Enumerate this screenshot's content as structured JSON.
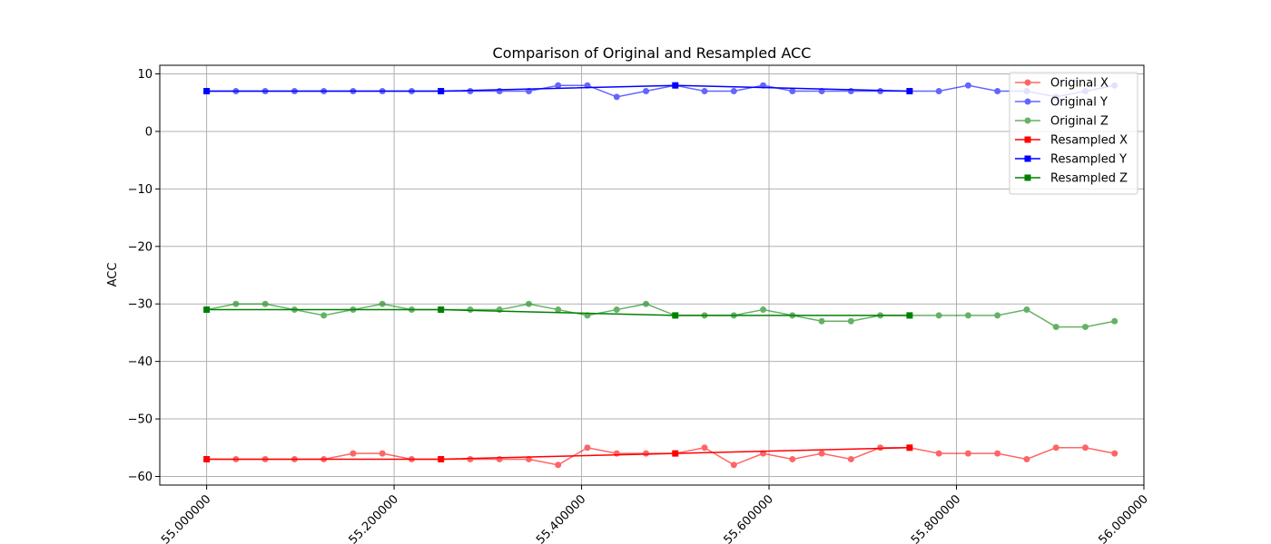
{
  "chart_data": {
    "type": "line",
    "title": "Comparison of Original and Resampled ACC",
    "xlabel": "",
    "ylabel": "ACC",
    "xlim": [
      54.95,
      56.0
    ],
    "ylim": [
      -61.5,
      11.5
    ],
    "grid": true,
    "legend_position": "top-right",
    "x_ticks": [
      55.0,
      55.2,
      55.4,
      55.6,
      55.8,
      56.0
    ],
    "x_tick_labels": [
      "55.000000",
      "55.200000",
      "55.400000",
      "55.600000",
      "55.800000",
      "56.000000"
    ],
    "y_ticks": [
      10,
      0,
      -10,
      -20,
      -30,
      -40,
      -50,
      -60
    ],
    "y_tick_labels": [
      "10",
      "0",
      "−10",
      "−20",
      "−30",
      "−40",
      "−50",
      "−60"
    ],
    "series": [
      {
        "name": "Original X",
        "color": "#ff0000",
        "opacity": 0.6,
        "marker": "circle",
        "x": [
          55.0,
          55.03125,
          55.0625,
          55.09375,
          55.125,
          55.15625,
          55.1875,
          55.21875,
          55.25,
          55.28125,
          55.3125,
          55.34375,
          55.375,
          55.40625,
          55.4375,
          55.46875,
          55.5,
          55.53125,
          55.5625,
          55.59375,
          55.625,
          55.65625,
          55.6875,
          55.71875,
          55.75,
          55.78125,
          55.8125,
          55.84375,
          55.875,
          55.90625,
          55.9375,
          55.96875
        ],
        "y": [
          -57,
          -57,
          -57,
          -57,
          -57,
          -56,
          -56,
          -57,
          -57,
          -57,
          -57,
          -57,
          -58,
          -55,
          -56,
          -56,
          -56,
          -55,
          -58,
          -56,
          -57,
          -56,
          -57,
          -55,
          -55,
          -56,
          -56,
          -56,
          -57,
          -55,
          -55,
          -56
        ]
      },
      {
        "name": "Original Y",
        "color": "#0000ff",
        "opacity": 0.6,
        "marker": "circle",
        "x": [
          55.0,
          55.03125,
          55.0625,
          55.09375,
          55.125,
          55.15625,
          55.1875,
          55.21875,
          55.25,
          55.28125,
          55.3125,
          55.34375,
          55.375,
          55.40625,
          55.4375,
          55.46875,
          55.5,
          55.53125,
          55.5625,
          55.59375,
          55.625,
          55.65625,
          55.6875,
          55.71875,
          55.75,
          55.78125,
          55.8125,
          55.84375,
          55.875,
          55.90625,
          55.9375,
          55.96875
        ],
        "y": [
          7,
          7,
          7,
          7,
          7,
          7,
          7,
          7,
          7,
          7,
          7,
          7,
          8,
          8,
          6,
          7,
          8,
          7,
          7,
          8,
          7,
          7,
          7,
          7,
          7,
          7,
          8,
          7,
          7,
          6,
          7,
          8
        ]
      },
      {
        "name": "Original Z",
        "color": "#008000",
        "opacity": 0.6,
        "marker": "circle",
        "x": [
          55.0,
          55.03125,
          55.0625,
          55.09375,
          55.125,
          55.15625,
          55.1875,
          55.21875,
          55.25,
          55.28125,
          55.3125,
          55.34375,
          55.375,
          55.40625,
          55.4375,
          55.46875,
          55.5,
          55.53125,
          55.5625,
          55.59375,
          55.625,
          55.65625,
          55.6875,
          55.71875,
          55.75,
          55.78125,
          55.8125,
          55.84375,
          55.875,
          55.90625,
          55.9375,
          55.96875
        ],
        "y": [
          -31,
          -30,
          -30,
          -31,
          -32,
          -31,
          -30,
          -31,
          -31,
          -31,
          -31,
          -30,
          -31,
          -32,
          -31,
          -30,
          -32,
          -32,
          -32,
          -31,
          -32,
          -33,
          -33,
          -32,
          -32,
          -32,
          -32,
          -32,
          -31,
          -34,
          -34,
          -33
        ]
      },
      {
        "name": "Resampled X",
        "color": "#ff0000",
        "opacity": 1.0,
        "marker": "square",
        "x": [
          55.0,
          55.25,
          55.5,
          55.75
        ],
        "y": [
          -57,
          -57,
          -56,
          -55
        ]
      },
      {
        "name": "Resampled Y",
        "color": "#0000ff",
        "opacity": 1.0,
        "marker": "square",
        "x": [
          55.0,
          55.25,
          55.5,
          55.75
        ],
        "y": [
          7,
          7,
          8,
          7
        ]
      },
      {
        "name": "Resampled Z",
        "color": "#008000",
        "opacity": 1.0,
        "marker": "square",
        "x": [
          55.0,
          55.25,
          55.5,
          55.75
        ],
        "y": [
          -31,
          -31,
          -32,
          -32
        ]
      }
    ]
  }
}
